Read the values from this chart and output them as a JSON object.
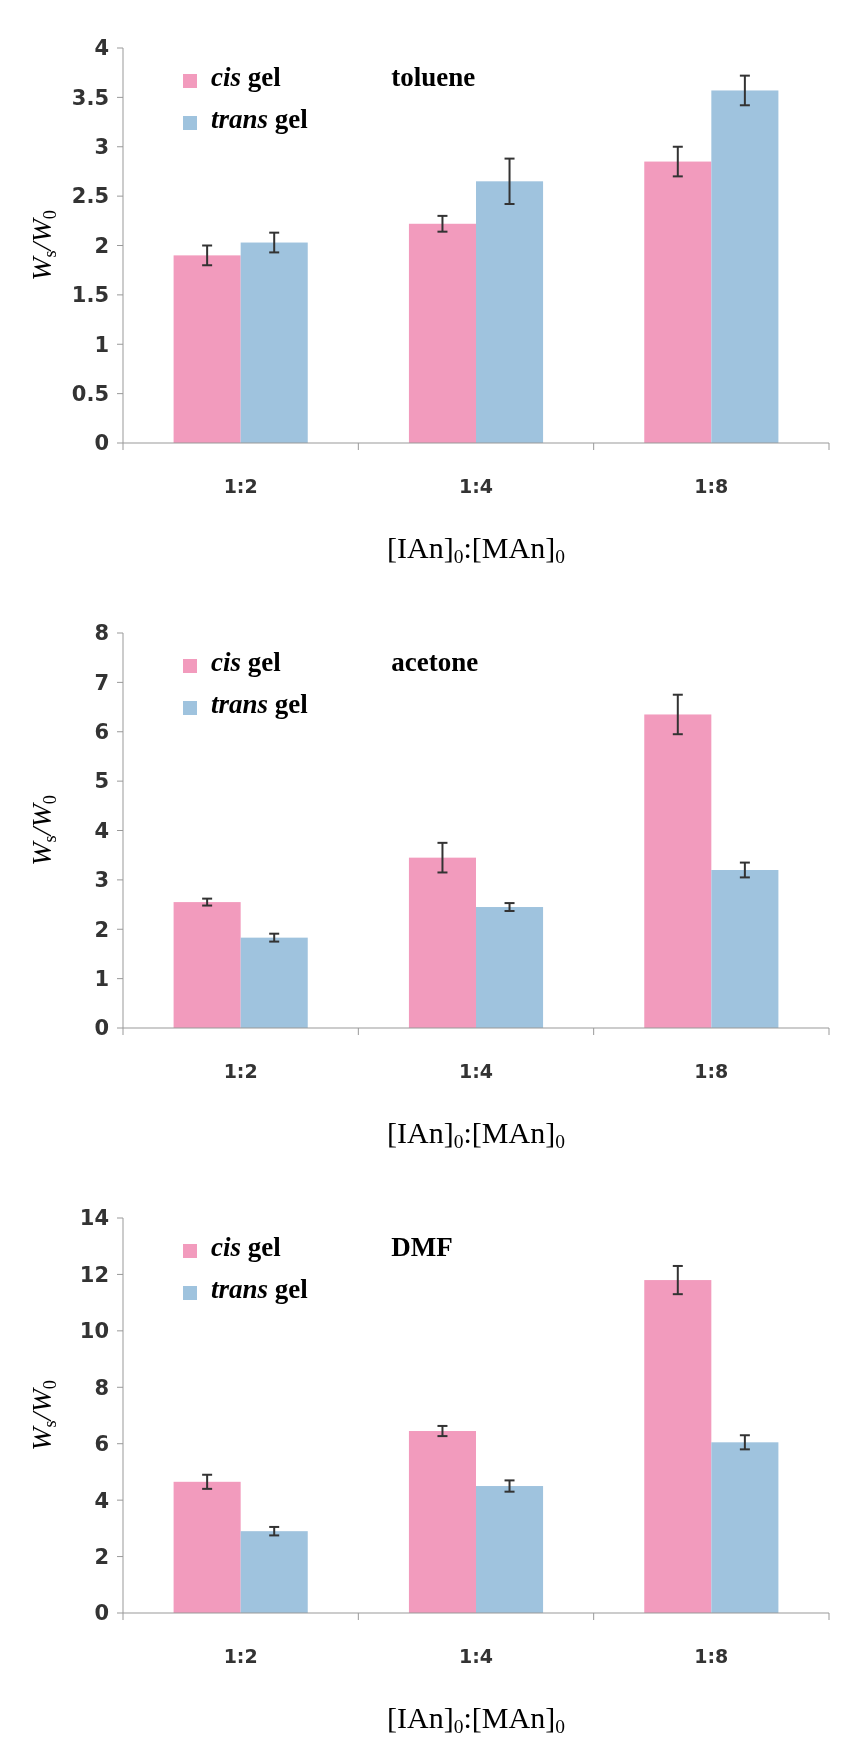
{
  "chart_data": [
    {
      "type": "bar",
      "categories": [
        "1:2",
        "1:4",
        "1:8"
      ],
      "xlabel": "[IAn]$_{0}$:[MAn]$_{0}$",
      "ylabel": "W$_{s}$/W$_{0}$",
      "ylim": [
        0,
        4
      ],
      "yticks": [
        0,
        0.5,
        1,
        1.5,
        2,
        2.5,
        3,
        3.5,
        4
      ],
      "grid": false,
      "legend": "top left",
      "annotations": [
        "toluene"
      ],
      "series": [
        {
          "name": "cis gel",
          "color": "#f29bbd",
          "values": [
            1.9,
            2.22,
            2.85
          ],
          "errors": [
            0.1,
            0.08,
            0.15
          ]
        },
        {
          "name": "trans gel",
          "color": "#9fc3de",
          "values": [
            2.03,
            2.65,
            3.57
          ],
          "errors": [
            0.1,
            0.23,
            0.15
          ]
        }
      ]
    },
    {
      "type": "bar",
      "categories": [
        "1:2",
        "1:4",
        "1:8"
      ],
      "xlabel": "[IAn]$_{0}$:[MAn]$_{0}$",
      "ylabel": "W$_{s}$/W$_{0}$",
      "ylim": [
        0,
        8
      ],
      "yticks": [
        0,
        1,
        2,
        3,
        4,
        5,
        6,
        7,
        8
      ],
      "grid": false,
      "legend": "top left",
      "annotations": [
        "acetone"
      ],
      "series": [
        {
          "name": "cis gel",
          "color": "#f29bbd",
          "values": [
            2.55,
            3.45,
            6.35
          ],
          "errors": [
            0.07,
            0.3,
            0.4
          ]
        },
        {
          "name": "trans gel",
          "color": "#9fc3de",
          "values": [
            1.83,
            2.45,
            3.2
          ],
          "errors": [
            0.08,
            0.08,
            0.15
          ]
        }
      ]
    },
    {
      "type": "bar",
      "categories": [
        "1:2",
        "1:4",
        "1:8"
      ],
      "xlabel": "[IAn]$_{0}$:[MAn]$_{0}$",
      "ylabel": "W$_{s}$/W$_{0}$",
      "ylim": [
        0,
        14
      ],
      "yticks": [
        0,
        2,
        4,
        6,
        8,
        10,
        12,
        14
      ],
      "grid": false,
      "legend": "top left",
      "annotations": [
        "DMF"
      ],
      "series": [
        {
          "name": "cis gel",
          "color": "#f29bbd",
          "values": [
            4.65,
            6.45,
            11.8
          ],
          "errors": [
            0.25,
            0.18,
            0.5
          ]
        },
        {
          "name": "trans gel",
          "color": "#9fc3de",
          "values": [
            2.9,
            4.5,
            6.05
          ],
          "errors": [
            0.15,
            0.2,
            0.25
          ]
        }
      ]
    }
  ]
}
